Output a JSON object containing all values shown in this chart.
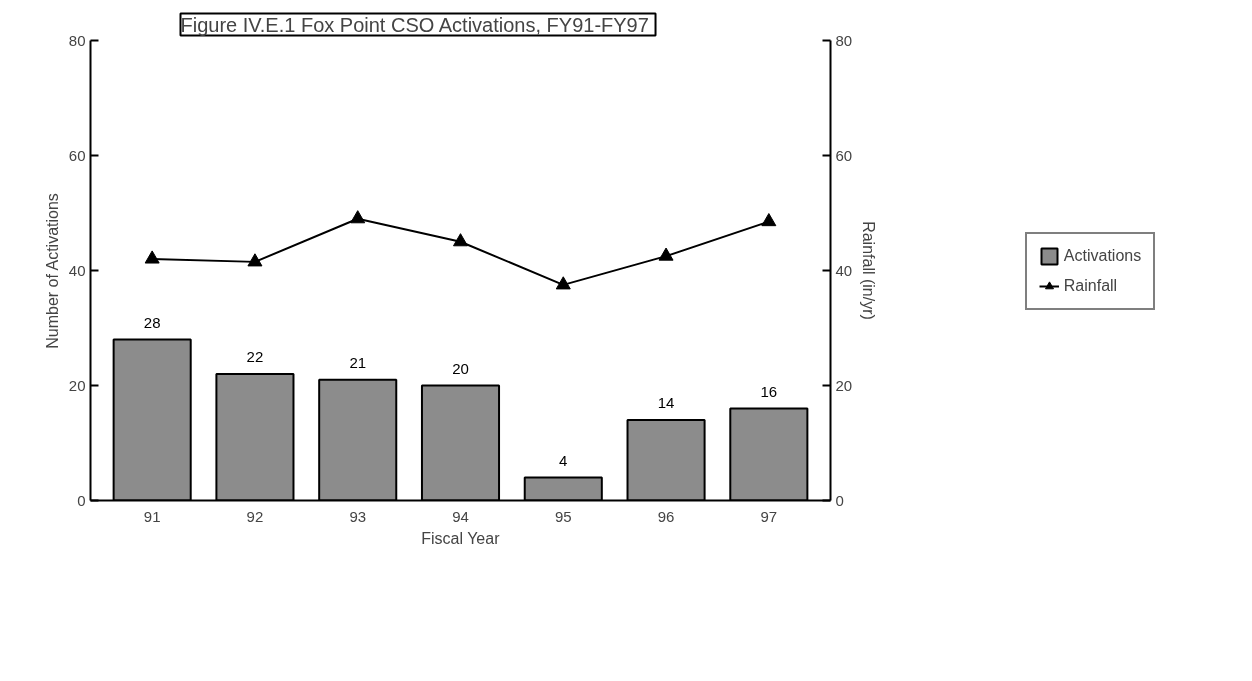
{
  "chart_data": {
    "type": "bar",
    "title": "Figure IV.E.1  Fox Point CSO Activations, FY91-FY97",
    "xlabel": "Fiscal Year",
    "ylabel": "Number of Activations",
    "y2label": "Rainfall (in/yr)",
    "categories": [
      "91",
      "92",
      "93",
      "94",
      "95",
      "96",
      "97"
    ],
    "series": [
      {
        "name": "Activations",
        "color": "#8c8c8c",
        "values": [
          28,
          22,
          21,
          20,
          4,
          14,
          16
        ],
        "value_labels": [
          "28",
          "22",
          "21",
          "20",
          "4",
          "14",
          "16"
        ]
      },
      {
        "name": "Rainfall",
        "type": "line",
        "axis": "y2",
        "color": "#000000",
        "marker": "triangle",
        "values": [
          42,
          41.5,
          49,
          45,
          37.5,
          42.5,
          48.5
        ]
      }
    ],
    "ylim": [
      0,
      80
    ],
    "yticks": [
      0,
      20,
      40,
      60,
      80
    ],
    "y2lim": [
      0,
      80
    ],
    "y2ticks": [
      0,
      20,
      40,
      60,
      80
    ],
    "grid": false,
    "legend": "right"
  }
}
